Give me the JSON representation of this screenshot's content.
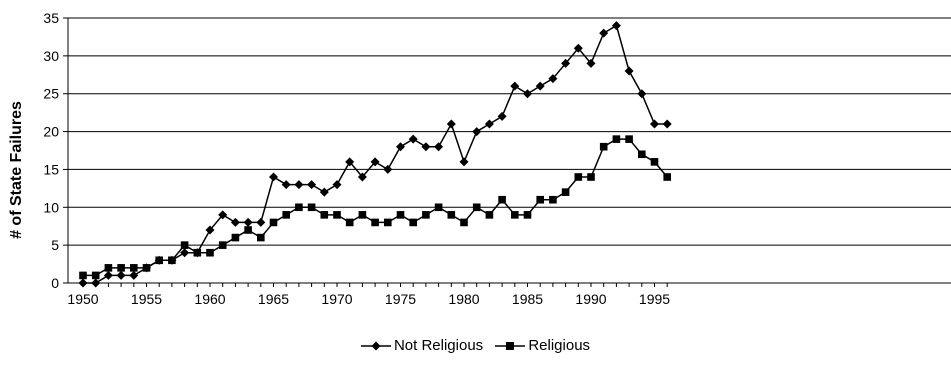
{
  "chart_data": {
    "type": "line",
    "ylabel": "# of State Failures",
    "xlabel": "",
    "title": "",
    "ylim": [
      0,
      35
    ],
    "yticks": [
      0,
      5,
      10,
      15,
      20,
      25,
      30,
      35
    ],
    "xticks": [
      1950,
      1955,
      1960,
      1965,
      1970,
      1975,
      1980,
      1985,
      1990,
      1995
    ],
    "x": [
      1950,
      1951,
      1952,
      1953,
      1954,
      1955,
      1956,
      1957,
      1958,
      1959,
      1960,
      1961,
      1962,
      1963,
      1964,
      1965,
      1966,
      1967,
      1968,
      1969,
      1970,
      1971,
      1972,
      1973,
      1974,
      1975,
      1976,
      1977,
      1978,
      1979,
      1980,
      1981,
      1982,
      1983,
      1984,
      1985,
      1986,
      1987,
      1988,
      1989,
      1990,
      1991,
      1992,
      1993,
      1994,
      1995,
      1996
    ],
    "grid": "horizontal",
    "legend_position": "bottom",
    "series": [
      {
        "name": "Not Religious",
        "marker": "diamond",
        "values": [
          0,
          0,
          1,
          1,
          1,
          2,
          3,
          3,
          4,
          4,
          7,
          9,
          8,
          8,
          8,
          14,
          13,
          13,
          13,
          12,
          13,
          16,
          14,
          16,
          15,
          18,
          19,
          18,
          18,
          21,
          16,
          20,
          21,
          22,
          26,
          25,
          26,
          27,
          29,
          31,
          29,
          33,
          34,
          28,
          25,
          21,
          21
        ]
      },
      {
        "name": "Religious",
        "marker": "square",
        "values": [
          1,
          1,
          2,
          2,
          2,
          2,
          3,
          3,
          5,
          4,
          4,
          5,
          6,
          7,
          6,
          8,
          9,
          10,
          10,
          9,
          9,
          8,
          9,
          8,
          8,
          9,
          8,
          9,
          10,
          9,
          8,
          10,
          9,
          11,
          9,
          9,
          11,
          11,
          12,
          14,
          14,
          18,
          19,
          19,
          17,
          16,
          14
        ]
      }
    ]
  }
}
